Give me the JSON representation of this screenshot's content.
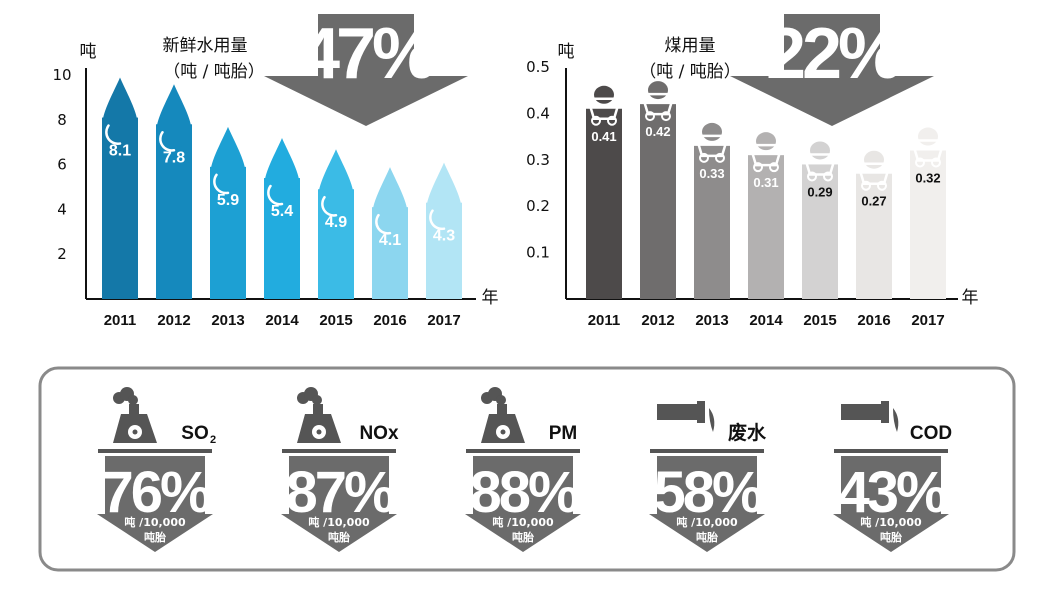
{
  "chart_data": [
    {
      "type": "bar",
      "title": "新鲜水用量",
      "subtitle": "（吨 / 吨胎）",
      "ylabel": "吨",
      "xlabel": "年",
      "categories": [
        "2011",
        "2012",
        "2013",
        "2014",
        "2015",
        "2016",
        "2017"
      ],
      "values": [
        8.1,
        7.8,
        5.9,
        5.4,
        4.9,
        4.1,
        4.3
      ],
      "value_labels": [
        "8.1",
        "7.8",
        "5.9",
        "5.4",
        "4.9",
        "4.1",
        "4.3"
      ],
      "yticks": [
        "2",
        "4",
        "6",
        "8",
        "10"
      ],
      "ylim": [
        0,
        10
      ],
      "reduction": "47%",
      "colors": [
        "#1478a8",
        "#1589bd",
        "#1da0d3",
        "#22acdf",
        "#3bbbe6",
        "#8cd6ef",
        "#b2e5f5"
      ]
    },
    {
      "type": "bar",
      "title": "煤用量",
      "subtitle": "（吨 / 吨胎）",
      "ylabel": "吨",
      "xlabel": "年",
      "categories": [
        "2011",
        "2012",
        "2013",
        "2014",
        "2015",
        "2016",
        "2017"
      ],
      "values": [
        0.41,
        0.42,
        0.33,
        0.31,
        0.29,
        0.27,
        0.32
      ],
      "value_labels": [
        "0.41",
        "0.42",
        "0.33",
        "0.31",
        "0.29",
        "0.27",
        "0.32"
      ],
      "yticks": [
        "0.1",
        "0.2",
        "0.3",
        "0.4",
        "0.5"
      ],
      "ylim": [
        0,
        0.5
      ],
      "reduction": "22%",
      "colors": [
        "#4d4a4a",
        "#6f6d6d",
        "#8e8c8c",
        "#b3b1b1",
        "#d3d2d2",
        "#e8e6e4",
        "#f1efed"
      ]
    }
  ],
  "emissions": [
    {
      "label": "SO",
      "sub": "2",
      "value": "76%",
      "unit_line1": "吨 /10,000",
      "unit_line2": "吨胎",
      "icon": "factory-icon"
    },
    {
      "label": "NOx",
      "sub": "",
      "value": "87%",
      "unit_line1": "吨 /10,000",
      "unit_line2": "吨胎",
      "icon": "factory-icon"
    },
    {
      "label": "PM",
      "sub": "",
      "value": "88%",
      "unit_line1": "吨 /10,000",
      "unit_line2": "吨胎",
      "icon": "factory-icon"
    },
    {
      "label": "废水",
      "sub": "",
      "value": "58%",
      "unit_line1": "吨 /10,000",
      "unit_line2": "吨胎",
      "icon": "pipe-outflow-icon"
    },
    {
      "label": "COD",
      "sub": "",
      "value": "43%",
      "unit_line1": "吨 /10,000",
      "unit_line2": "吨胎",
      "icon": "pipe-outflow-icon"
    }
  ],
  "arrow_color": "#6b6b6b"
}
